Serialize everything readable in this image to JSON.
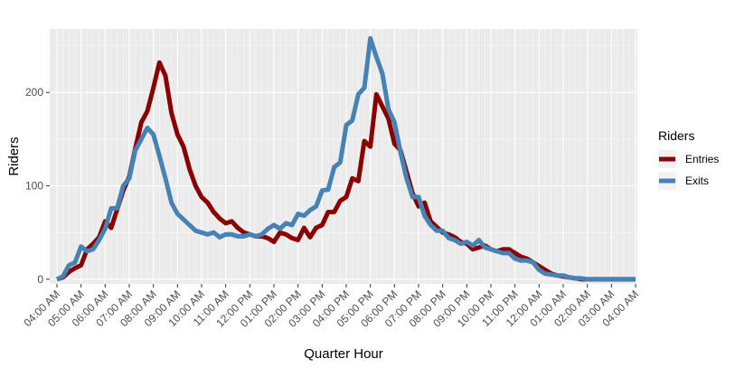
{
  "chart_data": {
    "type": "line",
    "xlabel": "Quarter Hour",
    "ylabel": "Riders",
    "ylim": [
      -5,
      268
    ],
    "yticks": [
      0,
      100,
      200
    ],
    "x_tick_labels": [
      "04:00 AM",
      "05:00 AM",
      "06:00 AM",
      "07:00 AM",
      "08:00 AM",
      "09:00 AM",
      "10:00 AM",
      "11:00 AM",
      "12:00 PM",
      "01:00 PM",
      "02:00 PM",
      "03:00 PM",
      "04:00 PM",
      "05:00 PM",
      "06:00 PM",
      "07:00 PM",
      "08:00 PM",
      "09:00 PM",
      "10:00 PM",
      "11:00 PM",
      "12:00 AM",
      "01:00 AM",
      "02:00 AM",
      "03:00 AM",
      "04:00 AM"
    ],
    "x_unit": "quarter hours from 04:00 AM",
    "grid": true,
    "background": "#ebebeb",
    "legend": {
      "title": "Riders",
      "position": "right"
    },
    "series": [
      {
        "name": "Entries",
        "color": "#8b0000",
        "values": [
          0,
          2,
          8,
          12,
          15,
          32,
          38,
          45,
          62,
          55,
          75,
          95,
          110,
          140,
          168,
          180,
          205,
          232,
          218,
          178,
          155,
          142,
          118,
          100,
          88,
          82,
          72,
          65,
          60,
          62,
          55,
          50,
          48,
          46,
          46,
          44,
          40,
          50,
          48,
          44,
          42,
          55,
          45,
          55,
          58,
          72,
          72,
          84,
          88,
          108,
          105,
          148,
          142,
          198,
          185,
          172,
          145,
          138,
          115,
          92,
          78,
          82,
          62,
          56,
          50,
          48,
          45,
          40,
          38,
          32,
          34,
          36,
          32,
          30,
          32,
          32,
          28,
          24,
          22,
          18,
          14,
          10,
          6,
          4,
          3,
          2,
          1,
          0,
          0,
          0,
          0,
          0,
          0,
          0,
          0,
          0,
          0
        ]
      },
      {
        "name": "Exits",
        "color": "#4682b4",
        "values": [
          0,
          3,
          15,
          18,
          35,
          30,
          32,
          42,
          54,
          76,
          76,
          100,
          108,
          138,
          150,
          162,
          155,
          132,
          108,
          82,
          70,
          64,
          58,
          52,
          50,
          48,
          50,
          45,
          48,
          48,
          46,
          46,
          48,
          46,
          48,
          54,
          58,
          54,
          60,
          58,
          70,
          68,
          74,
          78,
          95,
          96,
          120,
          125,
          165,
          170,
          198,
          205,
          258,
          238,
          220,
          182,
          168,
          136,
          108,
          88,
          88,
          68,
          58,
          52,
          52,
          44,
          42,
          38,
          40,
          36,
          42,
          34,
          32,
          30,
          28,
          28,
          22,
          20,
          20,
          18,
          10,
          6,
          5,
          4,
          4,
          2,
          1,
          1,
          0,
          0,
          0,
          0,
          0,
          0,
          0,
          0,
          0
        ]
      }
    ]
  }
}
